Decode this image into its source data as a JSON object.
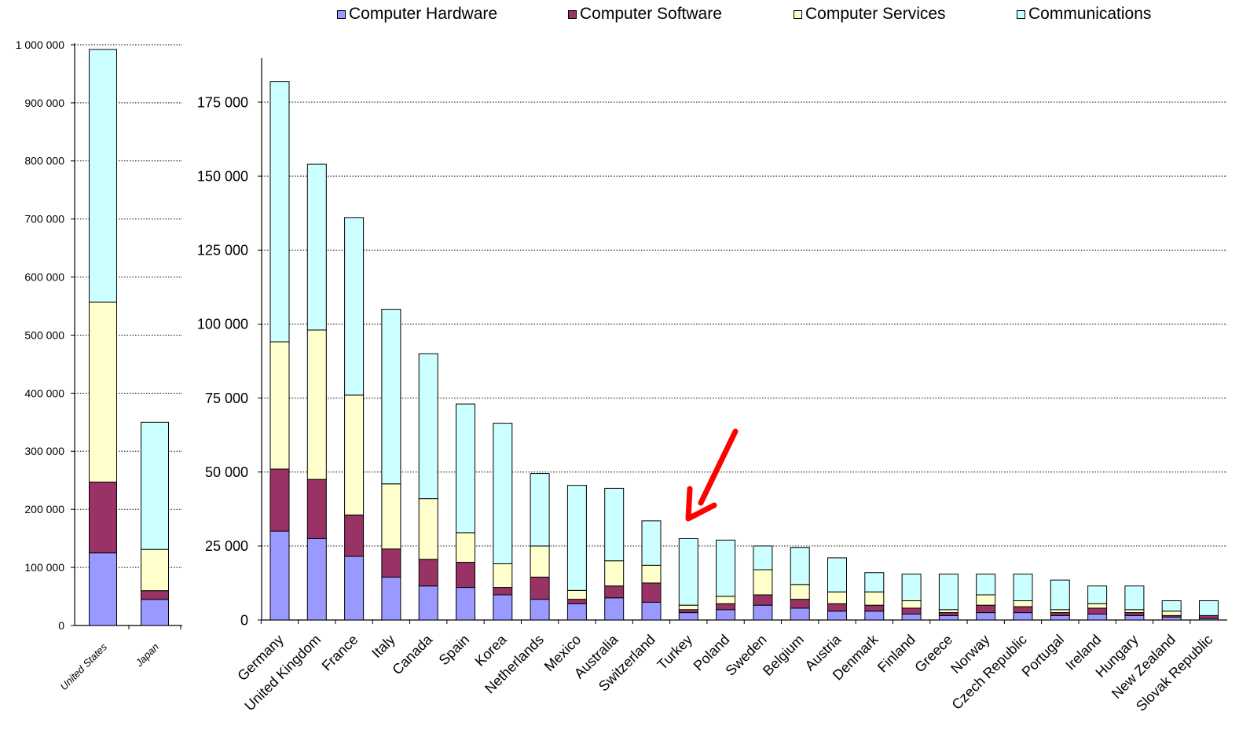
{
  "legend": [
    {
      "label": "Computer Hardware",
      "color": "#9999ff"
    },
    {
      "label": "Computer Software",
      "color": "#993366"
    },
    {
      "label": "Computer Services",
      "color": "#ffffcc"
    },
    {
      "label": "Communications",
      "color": "#ccffff"
    }
  ],
  "annotation": {
    "type": "arrow",
    "color": "#ff0000",
    "points_to": "Turkey"
  },
  "chart_data": [
    {
      "type": "bar",
      "stacked": true,
      "title": "",
      "xlabel": "",
      "ylabel": "",
      "ylim": [
        0,
        1000000
      ],
      "y_ticks": [
        0,
        100000,
        200000,
        300000,
        400000,
        500000,
        600000,
        700000,
        800000,
        900000,
        1000000
      ],
      "y_tick_labels": [
        "0",
        "100 000",
        "200 000",
        "300 000",
        "400 000",
        "500 000",
        "600 000",
        "700 000",
        "800 000",
        "900 000",
        "1 000 000"
      ],
      "grid": true,
      "categories": [
        "United States",
        "Japan"
      ],
      "series": [
        {
          "name": "Computer Hardware",
          "values": [
            125000,
            45000
          ]
        },
        {
          "name": "Computer Software",
          "values": [
            122000,
            15000
          ]
        },
        {
          "name": "Computer Services",
          "values": [
            310000,
            71000
          ]
        },
        {
          "name": "Communications",
          "values": [
            435000,
            219000
          ]
        }
      ]
    },
    {
      "type": "bar",
      "stacked": true,
      "title": "",
      "xlabel": "",
      "ylabel": "",
      "ylim": [
        0,
        190000
      ],
      "y_ticks": [
        0,
        25000,
        50000,
        75000,
        100000,
        125000,
        150000,
        175000
      ],
      "y_tick_labels": [
        "0",
        "25 000",
        "50 000",
        "75 000",
        "100 000",
        "125 000",
        "150 000",
        "175 000"
      ],
      "grid": true,
      "categories": [
        "Germany",
        "United Kingdom",
        "France",
        "Italy",
        "Canada",
        "Spain",
        "Korea",
        "Netherlands",
        "Mexico",
        "Australia",
        "Switzerland",
        "Turkey",
        "Poland",
        "Sweden",
        "Belgium",
        "Austria",
        "Denmark",
        "Finland",
        "Greece",
        "Norway",
        "Czech Republic",
        "Portugal",
        "Ireland",
        "Hungary",
        "New Zealand",
        "Slovak Republic"
      ],
      "series": [
        {
          "name": "Computer Hardware",
          "values": [
            30000,
            27500,
            21500,
            14500,
            11500,
            11000,
            8500,
            7000,
            5500,
            7500,
            6000,
            2500,
            3500,
            5000,
            4000,
            3000,
            3000,
            2000,
            1500,
            2500,
            2500,
            1500,
            2000,
            1500,
            1000,
            500
          ]
        },
        {
          "name": "Computer Software",
          "values": [
            21000,
            20000,
            14000,
            9500,
            9000,
            8500,
            2500,
            7500,
            1500,
            4000,
            6500,
            1000,
            2000,
            3500,
            3000,
            2500,
            2000,
            2000,
            1000,
            2500,
            2000,
            1000,
            2000,
            1000,
            500,
            1000
          ]
        },
        {
          "name": "Computer Services",
          "values": [
            43000,
            50500,
            40500,
            22000,
            20500,
            10000,
            8000,
            10500,
            3000,
            8500,
            6000,
            1500,
            2500,
            8500,
            5000,
            4000,
            4500,
            2500,
            1000,
            3500,
            2000,
            1000,
            1500,
            1000,
            1500,
            0
          ]
        },
        {
          "name": "Communications",
          "values": [
            88000,
            56000,
            60000,
            59000,
            49000,
            43500,
            47500,
            24500,
            35500,
            24500,
            15000,
            22500,
            19000,
            8000,
            12500,
            11500,
            6500,
            9000,
            12000,
            7000,
            9000,
            10000,
            6000,
            8000,
            3500,
            5000
          ]
        }
      ]
    }
  ]
}
